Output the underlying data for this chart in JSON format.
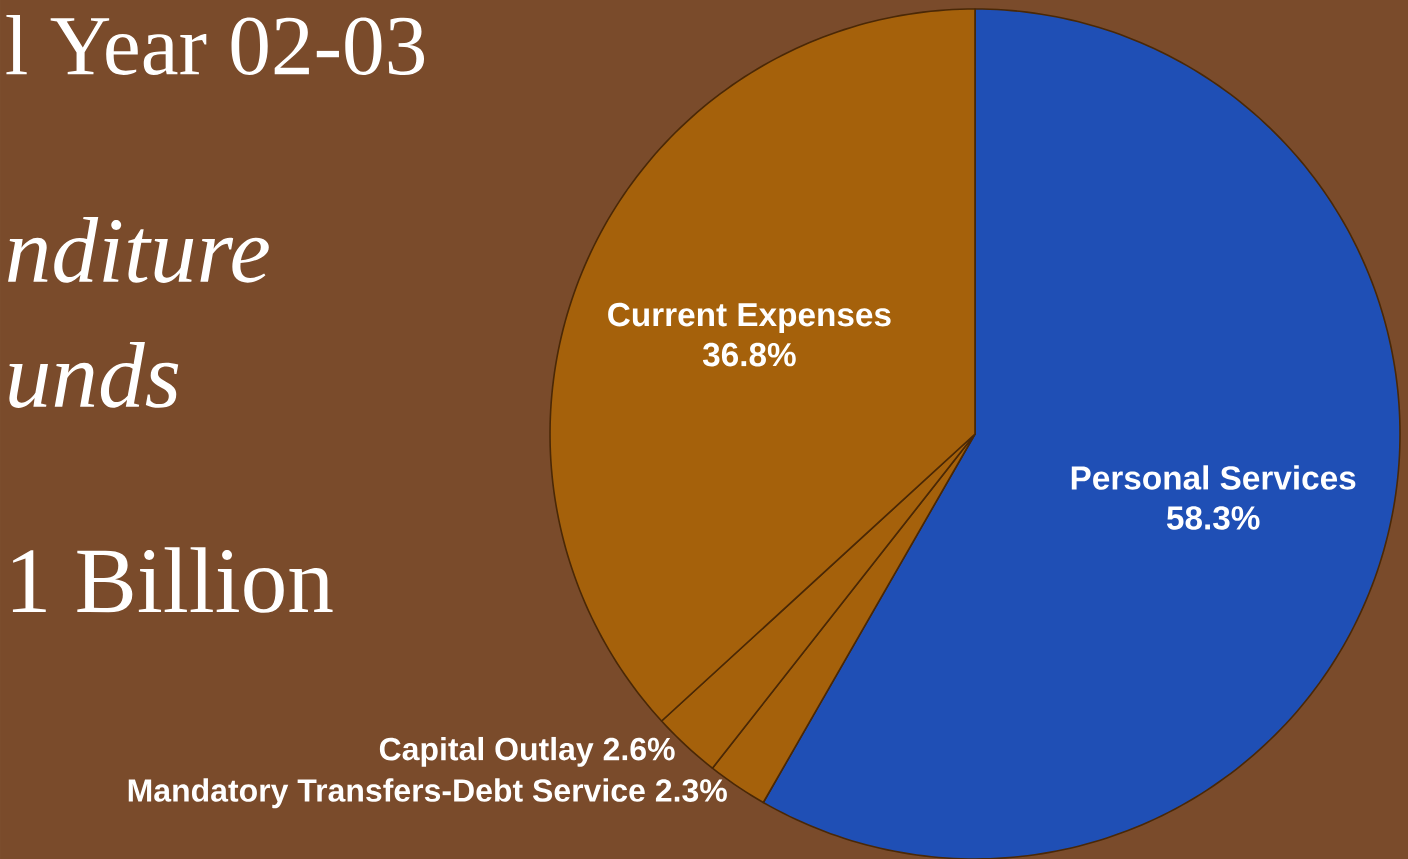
{
  "chart_data": {
    "type": "pie",
    "title": "l Year 02-03",
    "annotations": [
      "nditure",
      "unds",
      "1 Billion"
    ],
    "categories": [
      "Personal Services",
      "Mandatory Transfers-Debt Service",
      "Capital Outlay",
      "Current Expenses"
    ],
    "values": [
      58.3,
      2.3,
      2.6,
      36.8
    ],
    "colors": [
      "#1f4fb5",
      "#a5610b",
      "#a5610b",
      "#a5610b"
    ],
    "value_labels": [
      "58.3%",
      "2.3%",
      "2.6%",
      "36.8%"
    ]
  }
}
